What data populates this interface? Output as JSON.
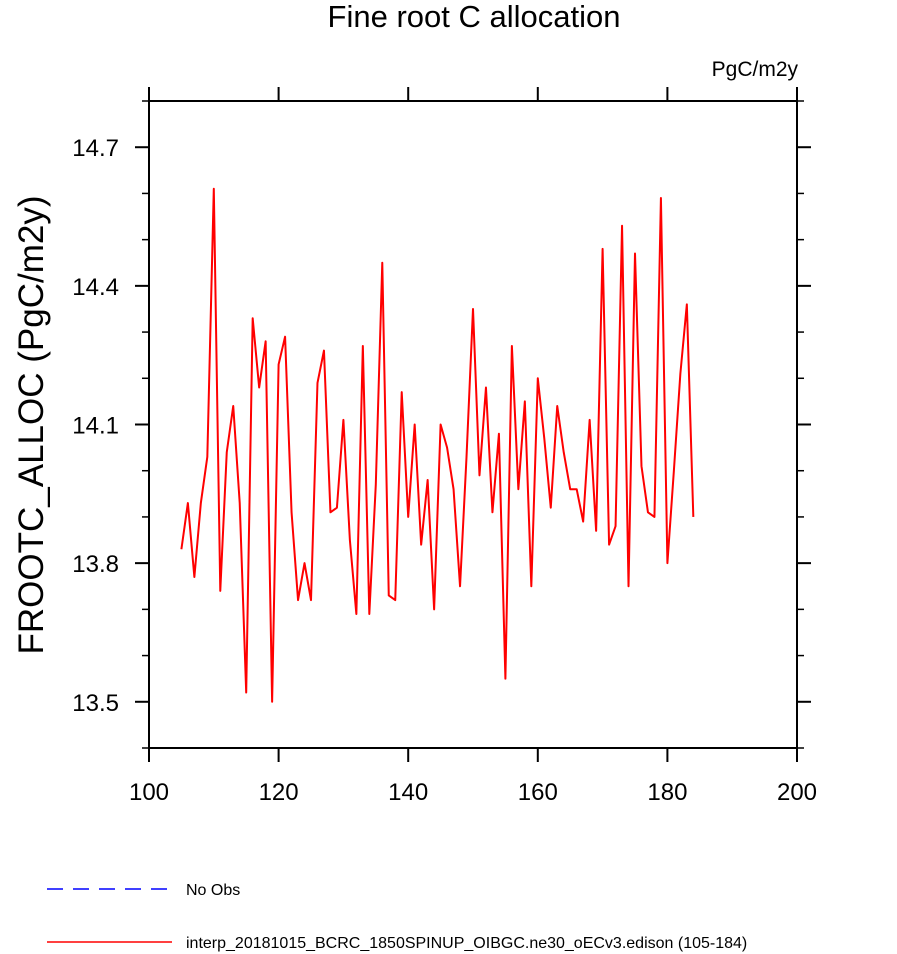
{
  "chart_data": {
    "type": "line",
    "title": "Fine root C allocation",
    "units": "PgC/m2y",
    "xlabel": "",
    "ylabel": "FROOTC_ALLOC  (PgC/m2y)",
    "xlim": [
      100,
      200
    ],
    "ylim": [
      13.4,
      14.8
    ],
    "x_ticks": [
      100,
      120,
      140,
      160,
      180,
      200
    ],
    "x_tick_labels": [
      "100",
      "120",
      "140",
      "160",
      "180",
      "200"
    ],
    "x_minor_step": 20,
    "y_ticks": [
      13.5,
      13.8,
      14.1,
      14.4,
      14.7
    ],
    "y_tick_labels": [
      "13.5",
      "13.8",
      "14.1",
      "14.4",
      "14.7"
    ],
    "y_minor_step": 0.1,
    "grid": false,
    "series": [
      {
        "name": "interp_20181015_BCRC_1850SPINUP_OIBGC.ne30_oECv3.edison (105-184)",
        "color": "#ff0000",
        "dash": "solid",
        "x": [
          105,
          106,
          107,
          108,
          109,
          110,
          111,
          112,
          113,
          114,
          115,
          116,
          117,
          118,
          119,
          120,
          121,
          122,
          123,
          124,
          125,
          126,
          127,
          128,
          129,
          130,
          131,
          132,
          133,
          134,
          135,
          136,
          137,
          138,
          139,
          140,
          141,
          142,
          143,
          144,
          145,
          146,
          147,
          148,
          149,
          150,
          151,
          152,
          153,
          154,
          155,
          156,
          157,
          158,
          159,
          160,
          161,
          162,
          163,
          164,
          165,
          166,
          167,
          168,
          169,
          170,
          171,
          172,
          173,
          174,
          175,
          176,
          177,
          178,
          179,
          180,
          181,
          182,
          183,
          184
        ],
        "values": [
          13.83,
          13.93,
          13.77,
          13.93,
          14.03,
          14.61,
          13.74,
          14.04,
          14.14,
          13.93,
          13.52,
          14.33,
          14.18,
          14.28,
          13.5,
          14.23,
          14.29,
          13.91,
          13.72,
          13.8,
          13.72,
          14.19,
          14.26,
          13.91,
          13.92,
          14.11,
          13.85,
          13.69,
          14.27,
          13.69,
          13.97,
          14.45,
          13.73,
          13.72,
          14.17,
          13.9,
          14.1,
          13.84,
          13.98,
          13.7,
          14.1,
          14.05,
          13.96,
          13.75,
          14.03,
          14.35,
          13.99,
          14.18,
          13.91,
          14.08,
          13.55,
          14.27,
          13.96,
          14.15,
          13.75,
          14.2,
          14.07,
          13.92,
          14.14,
          14.04,
          13.96,
          13.96,
          13.89,
          14.11,
          13.87,
          14.48,
          13.84,
          13.88,
          14.53,
          13.75,
          14.47,
          14.01,
          13.91,
          13.9,
          14.59,
          13.8,
          14.0,
          14.21,
          14.36,
          13.9
        ]
      },
      {
        "name": "No Obs",
        "color": "#0000ff",
        "dash": "dashed",
        "x": [],
        "values": []
      }
    ],
    "legend_position": "bottom-left"
  }
}
